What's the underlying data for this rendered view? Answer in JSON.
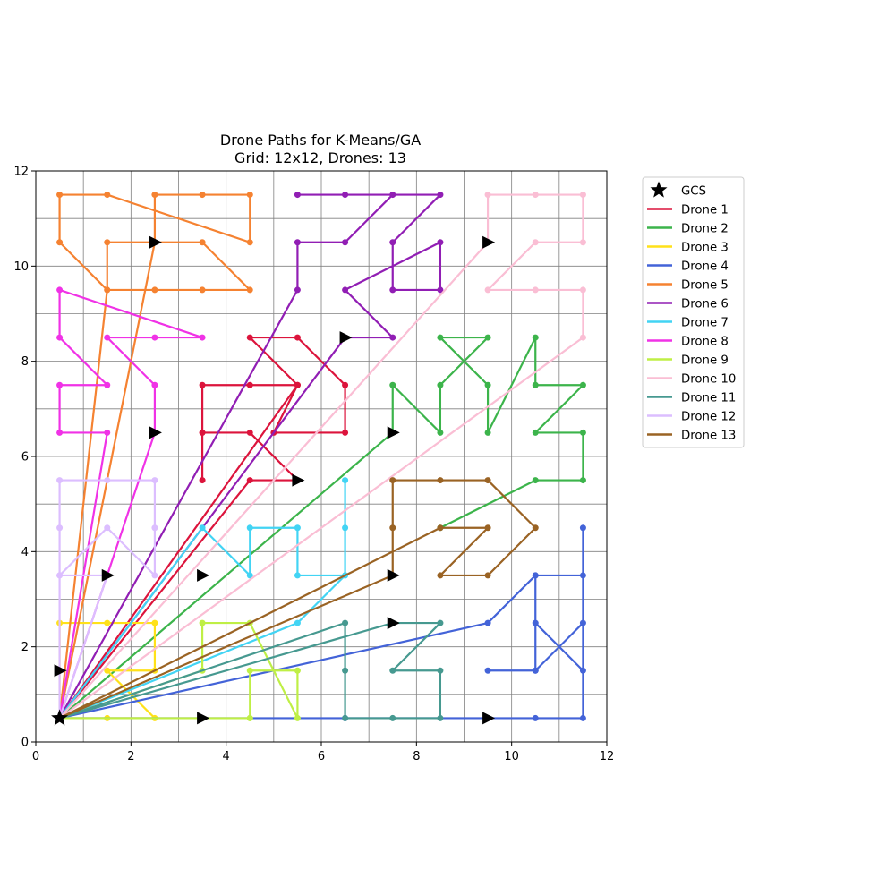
{
  "chart_data": {
    "type": "line",
    "title": "Drone Paths for K-Means/GA",
    "subtitle": "Grid: 12x12, Drones: 13",
    "xlabel": "",
    "ylabel": "",
    "xlim": [
      0,
      12
    ],
    "ylim": [
      0,
      12
    ],
    "xticks": [
      0,
      2,
      4,
      6,
      8,
      10,
      12
    ],
    "yticks": [
      0,
      2,
      4,
      6,
      8,
      10,
      12
    ],
    "x_tick_labels": [
      "0",
      "2",
      "4",
      "6",
      "8",
      "10",
      "12"
    ],
    "y_tick_labels": [
      "0",
      "2",
      "4",
      "6",
      "8",
      "10",
      "12"
    ],
    "grid": true,
    "grid_step": 1,
    "legend_position": "outside upper right",
    "gcs": {
      "name": "GCS",
      "x": 0.5,
      "y": 0.5,
      "marker": "star",
      "color": "#000000"
    },
    "series": [
      {
        "name": "Drone 1",
        "color": "#dc143c",
        "points": [
          [
            0.5,
            0.5
          ],
          [
            5.5,
            7.5
          ],
          [
            5.0,
            6.5
          ],
          [
            6.5,
            6.5
          ],
          [
            6.5,
            7.5
          ],
          [
            5.5,
            8.5
          ],
          [
            4.5,
            8.5
          ],
          [
            5.5,
            7.5
          ],
          [
            4.5,
            7.5
          ],
          [
            3.5,
            7.5
          ],
          [
            3.5,
            6.5
          ],
          [
            3.5,
            5.5
          ],
          [
            3.5,
            6.5
          ],
          [
            4.5,
            6.5
          ],
          [
            5.5,
            5.5
          ],
          [
            4.5,
            5.5
          ],
          [
            0.5,
            0.5
          ]
        ],
        "direction_marker": [
          5.5,
          5.5
        ]
      },
      {
        "name": "Drone 2",
        "color": "#3cb44b",
        "points": [
          [
            0.5,
            0.5
          ],
          [
            7.5,
            6.5
          ],
          [
            7.5,
            7.5
          ],
          [
            8.5,
            6.5
          ],
          [
            8.5,
            7.5
          ],
          [
            9.5,
            8.5
          ],
          [
            8.5,
            8.5
          ],
          [
            9.5,
            7.5
          ],
          [
            9.5,
            6.5
          ],
          [
            10.5,
            8.5
          ],
          [
            10.5,
            7.5
          ],
          [
            11.5,
            7.5
          ],
          [
            10.5,
            6.5
          ],
          [
            11.5,
            6.5
          ],
          [
            11.5,
            5.5
          ],
          [
            10.5,
            5.5
          ],
          [
            8.5,
            4.5
          ]
        ],
        "direction_marker": [
          7.5,
          6.5
        ]
      },
      {
        "name": "Drone 3",
        "color": "#ffe119",
        "points": [
          [
            0.5,
            0.5
          ],
          [
            0.5,
            2.5
          ],
          [
            1.5,
            2.5
          ],
          [
            2.5,
            2.5
          ],
          [
            2.5,
            1.5
          ],
          [
            1.5,
            1.5
          ],
          [
            2.5,
            0.5
          ],
          [
            1.5,
            0.5
          ],
          [
            0.5,
            0.5
          ]
        ],
        "direction_marker": null
      },
      {
        "name": "Drone 4",
        "color": "#4363d8",
        "points": [
          [
            0.5,
            0.5
          ],
          [
            9.5,
            2.5
          ],
          [
            10.5,
            3.5
          ],
          [
            10.5,
            2.5
          ],
          [
            11.5,
            1.5
          ],
          [
            11.5,
            2.5
          ],
          [
            10.5,
            1.5
          ],
          [
            9.5,
            1.5
          ],
          [
            10.5,
            1.5
          ],
          [
            10.5,
            3.5
          ],
          [
            11.5,
            3.5
          ],
          [
            11.5,
            4.5
          ],
          [
            11.5,
            0.5
          ],
          [
            10.5,
            0.5
          ],
          [
            9.5,
            0.5
          ],
          [
            6.5,
            0.5
          ],
          [
            0.5,
            0.5
          ]
        ],
        "direction_marker": [
          9.5,
          0.5
        ]
      },
      {
        "name": "Drone 5",
        "color": "#f58231",
        "points": [
          [
            0.5,
            0.5
          ],
          [
            2.5,
            10.5
          ],
          [
            3.5,
            10.5
          ],
          [
            4.5,
            9.5
          ],
          [
            3.5,
            9.5
          ],
          [
            2.5,
            9.5
          ],
          [
            1.5,
            9.5
          ],
          [
            1.5,
            10.5
          ],
          [
            2.5,
            10.5
          ],
          [
            2.5,
            11.5
          ],
          [
            3.5,
            11.5
          ],
          [
            4.5,
            11.5
          ],
          [
            4.5,
            10.5
          ],
          [
            1.5,
            11.5
          ],
          [
            0.5,
            11.5
          ],
          [
            0.5,
            10.5
          ],
          [
            1.5,
            9.5
          ],
          [
            0.5,
            0.5
          ]
        ],
        "direction_marker": [
          2.5,
          10.5
        ]
      },
      {
        "name": "Drone 6",
        "color": "#911eb4",
        "points": [
          [
            0.5,
            0.5
          ],
          [
            5.5,
            9.5
          ],
          [
            5.5,
            10.5
          ],
          [
            6.5,
            10.5
          ],
          [
            7.5,
            11.5
          ],
          [
            5.5,
            11.5
          ],
          [
            6.5,
            11.5
          ],
          [
            8.5,
            11.5
          ],
          [
            7.5,
            10.5
          ],
          [
            7.5,
            9.5
          ],
          [
            8.5,
            9.5
          ],
          [
            8.5,
            10.5
          ],
          [
            6.5,
            9.5
          ],
          [
            7.5,
            8.5
          ],
          [
            6.5,
            8.5
          ],
          [
            0.5,
            0.5
          ]
        ],
        "direction_marker": [
          6.5,
          8.5
        ]
      },
      {
        "name": "Drone 7",
        "color": "#42d4f4",
        "points": [
          [
            0.5,
            0.5
          ],
          [
            3.5,
            4.5
          ],
          [
            4.5,
            3.5
          ],
          [
            4.5,
            4.5
          ],
          [
            5.5,
            4.5
          ],
          [
            5.5,
            3.5
          ],
          [
            6.5,
            3.5
          ],
          [
            6.5,
            4.5
          ],
          [
            6.5,
            5.5
          ],
          [
            6.5,
            3.5
          ],
          [
            5.5,
            2.5
          ],
          [
            0.5,
            0.5
          ]
        ],
        "direction_marker": [
          3.5,
          3.5
        ]
      },
      {
        "name": "Drone 8",
        "color": "#f032e6",
        "points": [
          [
            0.5,
            0.5
          ],
          [
            1.5,
            6.5
          ],
          [
            0.5,
            6.5
          ],
          [
            0.5,
            7.5
          ],
          [
            1.5,
            7.5
          ],
          [
            0.5,
            8.5
          ],
          [
            0.5,
            9.5
          ],
          [
            3.5,
            8.5
          ],
          [
            2.5,
            8.5
          ],
          [
            1.5,
            8.5
          ],
          [
            2.5,
            7.5
          ],
          [
            2.5,
            6.5
          ],
          [
            0.5,
            0.5
          ]
        ],
        "direction_marker": [
          2.5,
          6.5
        ]
      },
      {
        "name": "Drone 9",
        "color": "#bfef45",
        "points": [
          [
            0.5,
            0.5
          ],
          [
            4.5,
            0.5
          ],
          [
            3.5,
            0.5
          ],
          [
            4.5,
            0.5
          ],
          [
            4.5,
            1.5
          ],
          [
            5.5,
            1.5
          ],
          [
            5.5,
            0.5
          ],
          [
            4.5,
            2.5
          ],
          [
            3.5,
            2.5
          ],
          [
            3.5,
            1.5
          ],
          [
            0.5,
            0.5
          ]
        ],
        "direction_marker": [
          3.5,
          0.5
        ]
      },
      {
        "name": "Drone 10",
        "color": "#fabed4",
        "points": [
          [
            0.5,
            0.5
          ],
          [
            9.5,
            10.5
          ],
          [
            9.5,
            11.5
          ],
          [
            10.5,
            11.5
          ],
          [
            11.5,
            11.5
          ],
          [
            11.5,
            10.5
          ],
          [
            10.5,
            10.5
          ],
          [
            9.5,
            9.5
          ],
          [
            10.5,
            9.5
          ],
          [
            11.5,
            9.5
          ],
          [
            11.5,
            8.5
          ],
          [
            0.5,
            0.5
          ]
        ],
        "direction_marker": [
          9.5,
          10.5
        ]
      },
      {
        "name": "Drone 11",
        "color": "#469990",
        "points": [
          [
            0.5,
            0.5
          ],
          [
            6.5,
            2.5
          ],
          [
            6.5,
            1.5
          ],
          [
            6.5,
            0.5
          ],
          [
            7.5,
            0.5
          ],
          [
            8.5,
            0.5
          ],
          [
            8.5,
            1.5
          ],
          [
            7.5,
            1.5
          ],
          [
            8.5,
            2.5
          ],
          [
            7.5,
            2.5
          ],
          [
            0.5,
            0.5
          ]
        ],
        "direction_marker": [
          7.5,
          2.5
        ]
      },
      {
        "name": "Drone 12",
        "color": "#dcbeff",
        "points": [
          [
            0.5,
            0.5
          ],
          [
            0.5,
            3.5
          ],
          [
            1.5,
            4.5
          ],
          [
            2.5,
            3.5
          ],
          [
            2.5,
            4.5
          ],
          [
            2.5,
            5.5
          ],
          [
            1.5,
            5.5
          ],
          [
            0.5,
            5.5
          ],
          [
            0.5,
            4.5
          ],
          [
            0.5,
            3.5
          ],
          [
            1.5,
            3.5
          ],
          [
            0.5,
            0.5
          ]
        ],
        "direction_marker": [
          1.5,
          3.5
        ]
      },
      {
        "name": "Drone 13",
        "color": "#9a6324",
        "points": [
          [
            0.5,
            0.5
          ],
          [
            7.5,
            3.5
          ],
          [
            7.5,
            4.5
          ],
          [
            7.5,
            5.5
          ],
          [
            8.5,
            5.5
          ],
          [
            9.5,
            5.5
          ],
          [
            10.5,
            4.5
          ],
          [
            9.5,
            3.5
          ],
          [
            8.5,
            3.5
          ],
          [
            9.5,
            4.5
          ],
          [
            8.5,
            4.5
          ],
          [
            0.5,
            0.5
          ]
        ],
        "direction_marker": [
          7.5,
          3.5
        ]
      }
    ]
  }
}
